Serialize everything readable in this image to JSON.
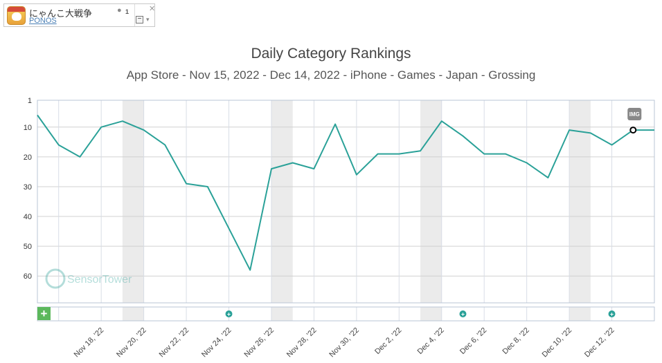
{
  "app": {
    "name": "にゃんこ大戦争",
    "developer": "PONOS",
    "store_count": "1",
    "apple_icon": "apple-icon",
    "close_icon": "close-icon",
    "collapse_label": "−",
    "caret_label": "▾"
  },
  "chart_data": {
    "type": "line",
    "title": "Daily Category Rankings",
    "subtitle": "App Store - Nov 15, 2022 - Dec 14, 2022 - iPhone - Games - Japan - Grossing",
    "xlabel": "",
    "ylabel": "",
    "y_reversed": true,
    "ylim": [
      1,
      69
    ],
    "y_ticks": [
      "1",
      "10",
      "20",
      "30",
      "40",
      "50",
      "60"
    ],
    "x_tick_labels": [
      "Nov 18, '22",
      "Nov 20, '22",
      "Nov 22, '22",
      "Nov 24, '22",
      "Nov 26, '22",
      "Nov 28, '22",
      "Nov 30, '22",
      "Dec 2, '22",
      "Dec 4, '22",
      "Dec 6, '22",
      "Dec 8, '22",
      "Dec 10, '22",
      "Dec 12, '22"
    ],
    "x": [
      "2022-11-15",
      "2022-11-16",
      "2022-11-17",
      "2022-11-18",
      "2022-11-19",
      "2022-11-20",
      "2022-11-21",
      "2022-11-22",
      "2022-11-23",
      "2022-11-24",
      "2022-11-25",
      "2022-11-26",
      "2022-11-27",
      "2022-11-28",
      "2022-11-29",
      "2022-11-30",
      "2022-12-01",
      "2022-12-02",
      "2022-12-03",
      "2022-12-04",
      "2022-12-05",
      "2022-12-06",
      "2022-12-07",
      "2022-12-08",
      "2022-12-09",
      "2022-12-10",
      "2022-12-11",
      "2022-12-12",
      "2022-12-13",
      "2022-12-14"
    ],
    "series": [
      {
        "name": "",
        "color": "#2aa198",
        "values": [
          6,
          16,
          20,
          10,
          8,
          11,
          16,
          29,
          30,
          44,
          58,
          24,
          22,
          24,
          9,
          26,
          19,
          19,
          18,
          8,
          13,
          19,
          19,
          22,
          27,
          11,
          12,
          16,
          11,
          11
        ]
      }
    ],
    "weekend_bands": [
      [
        "2022-11-19",
        "2022-11-20"
      ],
      [
        "2022-11-26",
        "2022-11-27"
      ],
      [
        "2022-12-03",
        "2022-12-04"
      ],
      [
        "2022-12-10",
        "2022-12-11"
      ]
    ],
    "event_markers": [
      "2022-11-24",
      "2022-12-05",
      "2022-12-12"
    ],
    "image_marker": {
      "date": "2022-12-13",
      "label": "IMG"
    },
    "highlight_point": "2022-12-13",
    "add_event_label": "+",
    "watermark": "SensorTower",
    "grid": true,
    "colors": {
      "line": "#2aa198",
      "grid": "#d0d0d0",
      "band": "#ebebeb",
      "marker": "#2aa198",
      "add_button": "#5cb85c"
    }
  }
}
